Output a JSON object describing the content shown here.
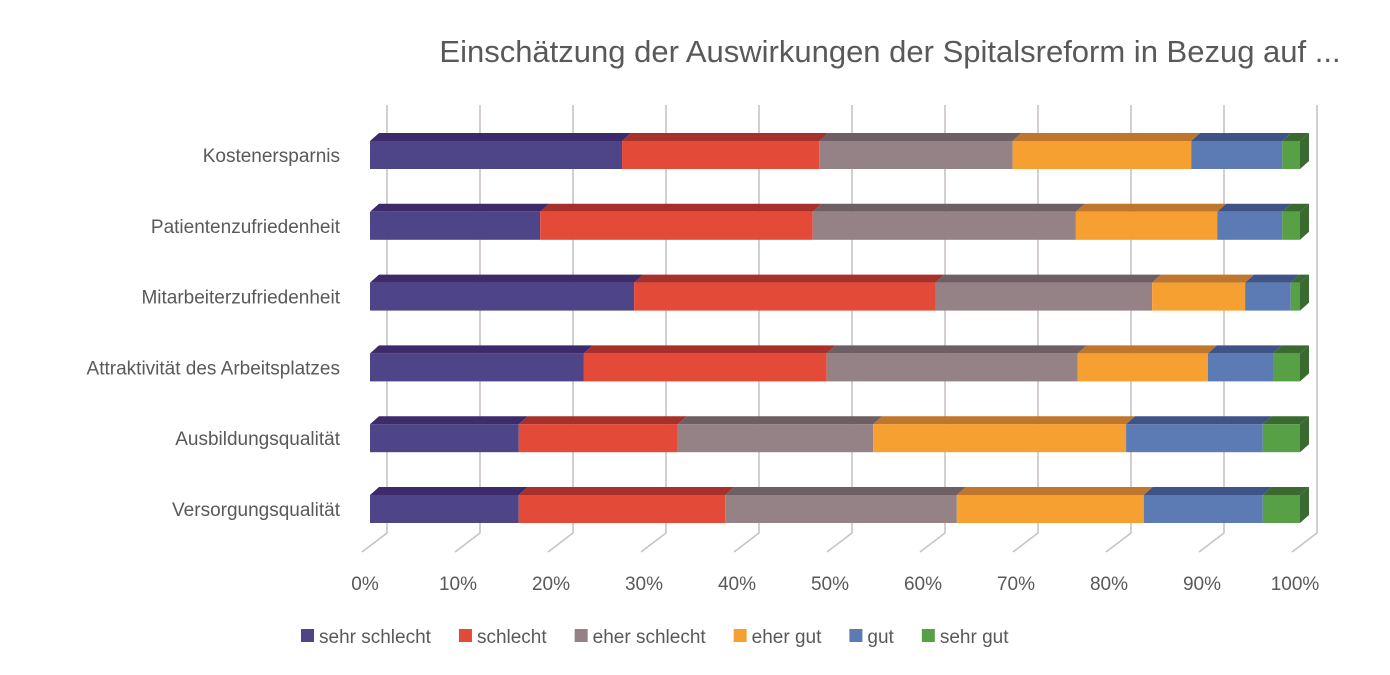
{
  "chart_data": {
    "type": "bar",
    "orientation": "horizontal",
    "stacked": "100%",
    "style": "3d",
    "title": "Einschätzung der Auswirkungen der Spitalsreform in Bezug auf ...",
    "xlabel": "",
    "ylabel": "",
    "xlim": [
      0,
      100
    ],
    "x_ticks": [
      "0%",
      "10%",
      "20%",
      "30%",
      "40%",
      "50%",
      "60%",
      "70%",
      "80%",
      "90%",
      "100%"
    ],
    "grid": true,
    "legend_position": "bottom",
    "categories": [
      "Kostenersparnis",
      "Patientenzufriedenheit",
      "Mitarbeiterzufriedenheit",
      "Attraktivität des Arbeitsplatzes",
      "Ausbildungsqualität",
      "Versorgungsqualität"
    ],
    "series": [
      {
        "name": "sehr schlecht",
        "color": "#4e4589",
        "top": "#3d2a6b",
        "values": [
          27.1,
          18.3,
          28.4,
          23.0,
          16.0,
          16.0
        ]
      },
      {
        "name": "schlecht",
        "color": "#e44a38",
        "top": "#a8302b",
        "values": [
          21.2,
          29.3,
          32.4,
          26.1,
          17.1,
          22.2
        ]
      },
      {
        "name": "eher schlecht",
        "color": "#948286",
        "top": "#6e5f64",
        "values": [
          20.8,
          28.3,
          23.3,
          27.0,
          21.0,
          24.9
        ]
      },
      {
        "name": "eher gut",
        "color": "#f6a031",
        "top": "#c0762c",
        "values": [
          19.2,
          15.2,
          10.0,
          14.0,
          27.2,
          20.1
        ]
      },
      {
        "name": "gut",
        "color": "#5c7ab3",
        "top": "#3e5487",
        "values": [
          9.8,
          7.0,
          4.9,
          7.0,
          14.7,
          12.8
        ]
      },
      {
        "name": "sehr gut",
        "color": "#57a046",
        "top": "#3a6a2f",
        "values": [
          1.9,
          1.9,
          1.0,
          2.9,
          4.0,
          4.0
        ]
      }
    ]
  }
}
